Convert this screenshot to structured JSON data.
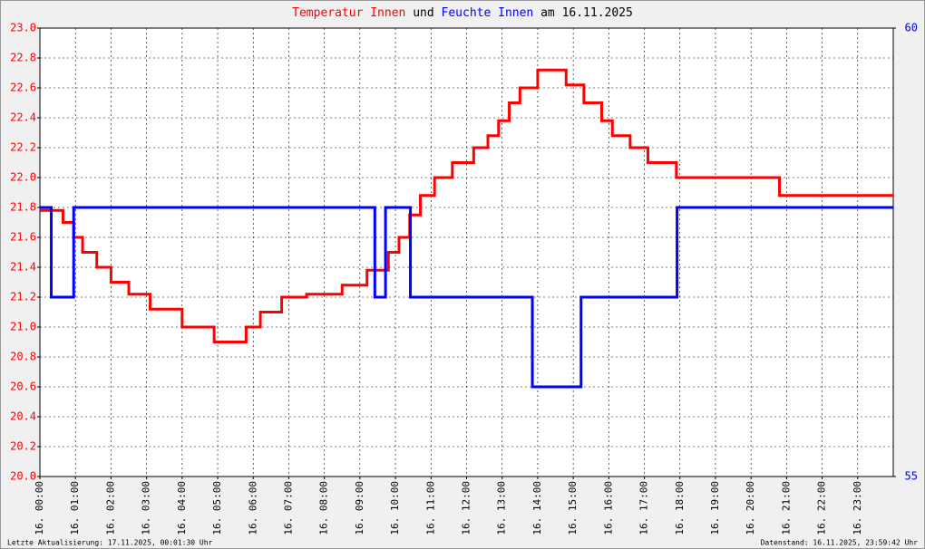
{
  "chart_data": {
    "type": "line",
    "title_parts": [
      {
        "text": "Temperatur Innen",
        "color": "#ff0000"
      },
      {
        "text": "und",
        "color": "#000000"
      },
      {
        "text": "Feuchte Innen",
        "color": "#0000ff"
      },
      {
        "text": "am 16.11.2025",
        "color": "#000000"
      }
    ],
    "step": true,
    "grid": true,
    "xlim": [
      0,
      24
    ],
    "xticks": [
      {
        "value": 0,
        "label": "16. 00:00"
      },
      {
        "value": 1,
        "label": "16. 01:00"
      },
      {
        "value": 2,
        "label": "16. 02:00"
      },
      {
        "value": 3,
        "label": "16. 03:00"
      },
      {
        "value": 4,
        "label": "16. 04:00"
      },
      {
        "value": 5,
        "label": "16. 05:00"
      },
      {
        "value": 6,
        "label": "16. 06:00"
      },
      {
        "value": 7,
        "label": "16. 07:00"
      },
      {
        "value": 8,
        "label": "16. 08:00"
      },
      {
        "value": 9,
        "label": "16. 09:00"
      },
      {
        "value": 10,
        "label": "16. 10:00"
      },
      {
        "value": 11,
        "label": "16. 11:00"
      },
      {
        "value": 12,
        "label": "16. 12:00"
      },
      {
        "value": 13,
        "label": "16. 13:00"
      },
      {
        "value": 14,
        "label": "16. 14:00"
      },
      {
        "value": 15,
        "label": "16. 15:00"
      },
      {
        "value": 16,
        "label": "16. 16:00"
      },
      {
        "value": 17,
        "label": "16. 17:00"
      },
      {
        "value": 18,
        "label": "16. 18:00"
      },
      {
        "value": 19,
        "label": "16. 19:00"
      },
      {
        "value": 20,
        "label": "16. 20:00"
      },
      {
        "value": 21,
        "label": "16. 21:00"
      },
      {
        "value": 22,
        "label": "16. 22:00"
      },
      {
        "value": 23,
        "label": "16. 23:00"
      }
    ],
    "ylim": [
      20,
      23
    ],
    "yticks": [
      {
        "value": 20,
        "label": "20.0"
      },
      20.2,
      20.4,
      20.6,
      20.8,
      {
        "value": 21,
        "label": "21.0"
      },
      21.2,
      21.4,
      21.6,
      21.8,
      {
        "value": 22,
        "label": "22.0"
      },
      22.2,
      22.4,
      22.6,
      22.8,
      {
        "value": 23,
        "label": "23.0"
      }
    ],
    "y2lim": [
      55,
      60
    ],
    "y2ticks": [
      55,
      60
    ],
    "y2color": "#0000ff",
    "series": [
      {
        "name": "Temperatur Innen",
        "color": "#ff0000",
        "x": [
          0,
          0.65,
          0.95,
          1.2,
          1.6,
          2.0,
          2.5,
          3.1,
          4.0,
          4.9,
          5.8,
          6.2,
          6.8,
          7.5,
          8.5,
          9.2,
          9.8,
          10.1,
          10.4,
          10.7,
          11.1,
          11.6,
          12.2,
          12.6,
          12.9,
          13.2,
          13.5,
          14.0,
          14.8,
          15.3,
          15.8,
          16.1,
          16.6,
          17.1,
          17.9,
          20.8,
          24
        ],
        "values": [
          21.78,
          21.7,
          21.6,
          21.5,
          21.4,
          21.3,
          21.22,
          21.12,
          21.0,
          20.9,
          21.0,
          21.1,
          21.2,
          21.22,
          21.28,
          21.38,
          21.5,
          21.6,
          21.75,
          21.88,
          22.0,
          22.1,
          22.2,
          22.28,
          22.38,
          22.5,
          22.6,
          22.72,
          22.62,
          22.5,
          22.38,
          22.28,
          22.2,
          22.1,
          22.0,
          21.88,
          21.88
        ]
      },
      {
        "name": "Feuchte Innen",
        "color": "#0000ff",
        "axis": "y2",
        "x": [
          0,
          0.32,
          0.95,
          9.42,
          9.72,
          10.42,
          13.85,
          15.22,
          17.92,
          24
        ],
        "values": [
          58,
          57,
          58,
          57,
          58,
          57,
          56,
          57,
          58,
          58
        ]
      }
    ],
    "footer_left": "Letzte Aktualisierung: 17.11.2025, 00:01:30 Uhr",
    "footer_right": "Datenstand: 16.11.2025, 23:59:42 Uhr"
  }
}
